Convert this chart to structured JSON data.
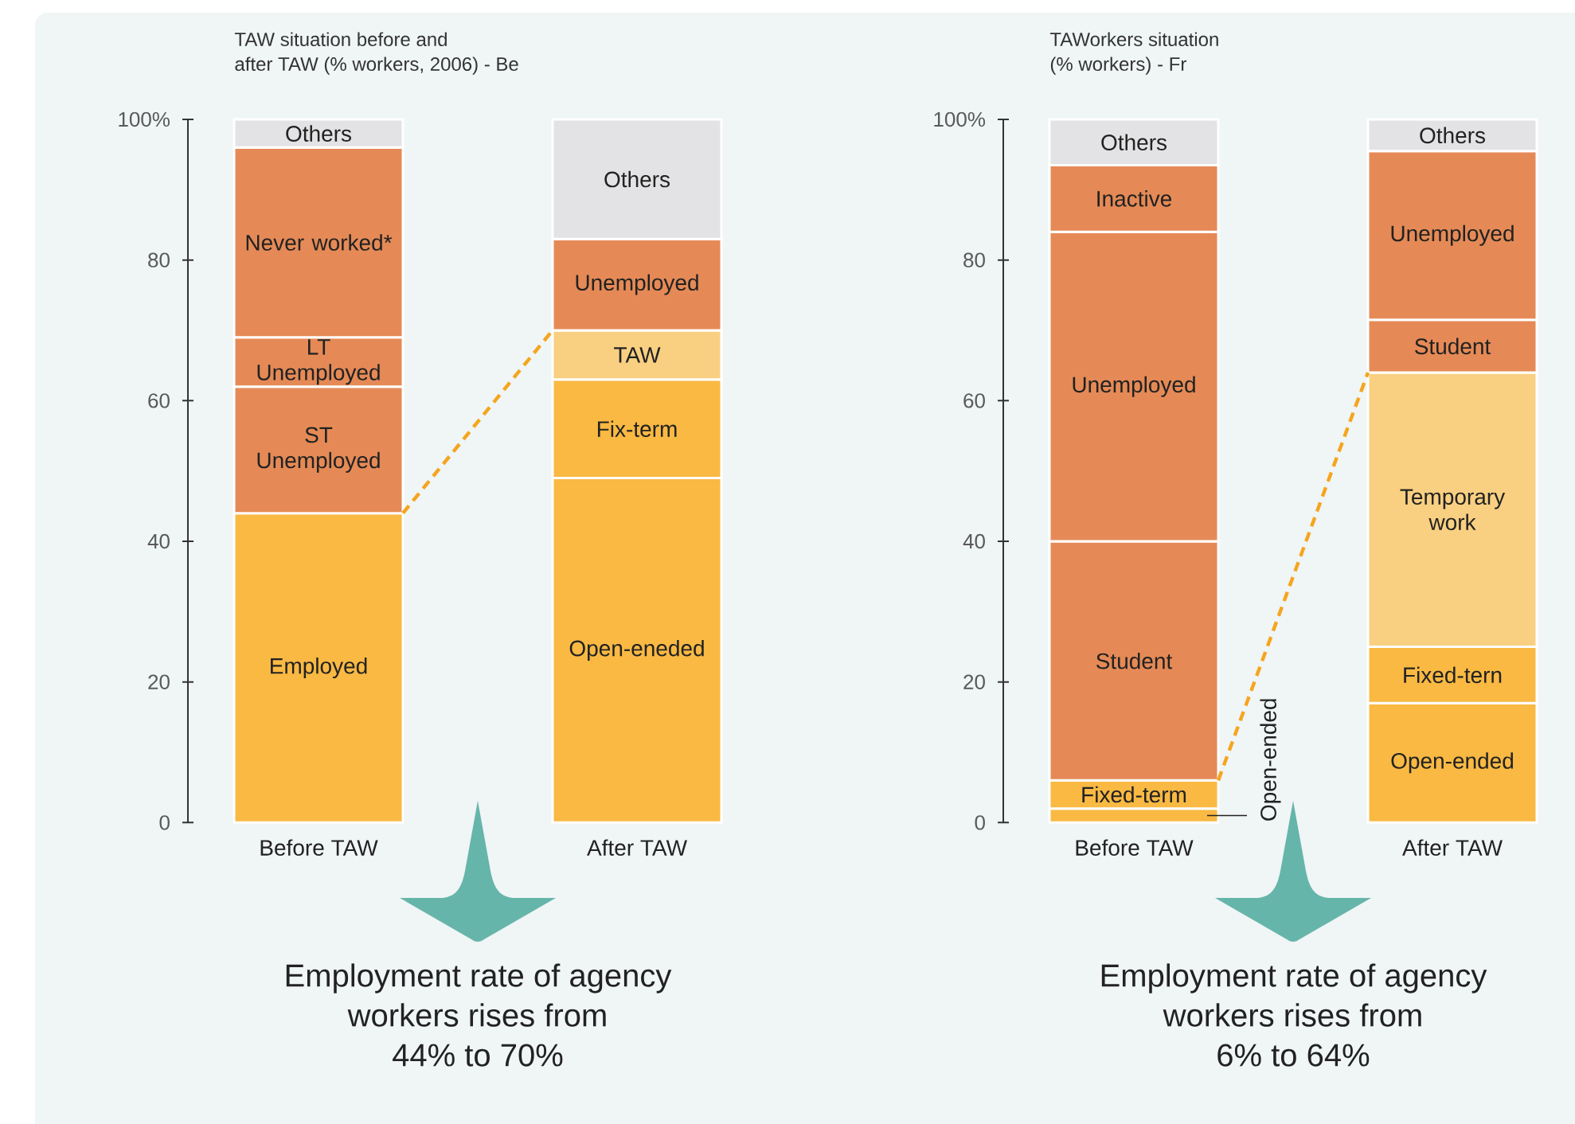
{
  "chart_data": [
    {
      "type": "bar",
      "title": "TAW situation before and after TAW (% workers, 2006) - Be",
      "categories": [
        "Before TAW",
        "After TAW"
      ],
      "stacked": true,
      "series": [
        {
          "name": "Employed",
          "color": "#f9b943",
          "values": [
            44,
            null
          ]
        },
        {
          "name": "Open-eneded",
          "color": "#f9b943",
          "values": [
            null,
            49
          ]
        },
        {
          "name": "ST Unemployed",
          "color": "#e58a56",
          "values": [
            18,
            null
          ]
        },
        {
          "name": "Fix-term",
          "color": "#f9b943",
          "values": [
            null,
            14
          ]
        },
        {
          "name": "LT Unemployed",
          "color": "#e58a56",
          "values": [
            7,
            null
          ]
        },
        {
          "name": "TAW",
          "color": "#f9d081",
          "values": [
            null,
            7
          ]
        },
        {
          "name": "Never worked*",
          "color": "#e58a56",
          "values": [
            27,
            null
          ]
        },
        {
          "name": "Unemployed",
          "color": "#e58a56",
          "values": [
            null,
            13
          ]
        },
        {
          "name": "Others",
          "color": "#e3e3e5",
          "values": [
            4,
            17
          ]
        }
      ],
      "ylim": [
        0,
        100
      ],
      "yticks": [
        0,
        20,
        40,
        60,
        80,
        {
          "value": 100,
          "label": "100%"
        }
      ],
      "annotations": [
        "Employment rate of agency workers rises from 44% to 70%"
      ]
    },
    {
      "type": "bar",
      "title": "TAWorkers situation (% workers) - Fr",
      "categories": [
        "Before TAW",
        "After TAW"
      ],
      "stacked": true,
      "series": [
        {
          "name": "Open-ended",
          "color": "#f9b943",
          "values": [
            2,
            17
          ]
        },
        {
          "name": "Fixed-term",
          "color": "#f9b943",
          "values": [
            4,
            null
          ]
        },
        {
          "name": "Fixed-tern",
          "color": "#f9b943",
          "values": [
            null,
            8
          ]
        },
        {
          "name": "Temporary work",
          "color": "#f9d081",
          "values": [
            null,
            39
          ]
        },
        {
          "name": "Student",
          "color": "#e58a56",
          "values": [
            34,
            7.5
          ]
        },
        {
          "name": "Unemployed",
          "color": "#e58a56",
          "values": [
            44,
            24
          ]
        },
        {
          "name": "Inactive",
          "color": "#e58a56",
          "values": [
            9.5,
            null
          ]
        },
        {
          "name": "Others",
          "color": "#e3e3e5",
          "values": [
            6.5,
            4.5
          ]
        }
      ],
      "ylim": [
        0,
        100
      ],
      "yticks": [
        0,
        20,
        40,
        60,
        80,
        {
          "value": 100,
          "label": "100%"
        }
      ],
      "annotations": [
        "Employment rate of agency workers rises from 6% to 64%"
      ]
    }
  ]
}
